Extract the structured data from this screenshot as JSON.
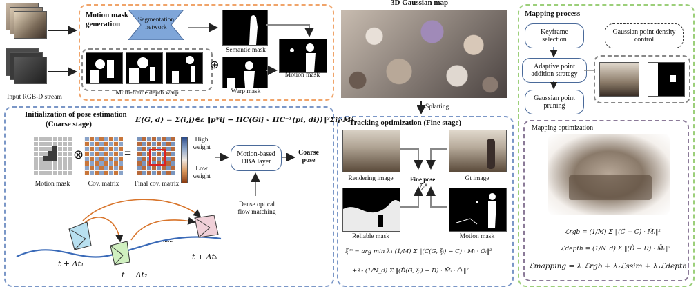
{
  "motion": {
    "title": "Motion mask\ngeneration",
    "segnet": "Segmentation\nnetwork",
    "semantic": "Semantic mask",
    "warp": "Warp mask",
    "motion_mask": "Motion mask",
    "multi_frame": "Multi-frame depth warp",
    "input": "Input RGB-D stream",
    "plus": "⊕"
  },
  "gaussian": {
    "title": "3D Gaussian map",
    "splatting": "Splatting"
  },
  "pose": {
    "title": "Initialization of pose estimation",
    "subtitle": "(Coarse stage)",
    "formula": "E(G, d) = Σ(i,j)∈ε ‖p*ij − ΠC(Gij ∘ ΠC⁻¹(pi, di))‖²Σij·Mj",
    "motion_mask": "Motion mask",
    "cov": "Cov. matrix",
    "final_cov": "Final cov. matrix",
    "otimes": "⊗",
    "equals": "=",
    "high": "High\nweight",
    "low": "Low\nweight",
    "dba": "Motion-based\nDBA layer",
    "coarse": "Coarse\npose",
    "dense": "Dense optical\nflow matching",
    "t1": "t + Δt₁",
    "t2": "t + Δt₂",
    "tk": "t + Δtₖ",
    "dots": "......"
  },
  "tracking": {
    "title": "Tracking optimization (Fine stage)",
    "rendering": "Rendering image",
    "gt": "Gt image",
    "fine": "Fine pose",
    "xi": "ξᵢ*",
    "reliable": "Reliable mask",
    "motion": "Motion mask",
    "eq1": "ξᵢ* = arg min λ₁ (1/M) Σ ‖(Ĉ(G, ξᵢ) − C) · M̄ᵢ · Ōᵢ‖²",
    "eq2": "+λ₂ (1/N_d) Σ ‖(D̂(G, ξᵢ) − D) · M̄ᵢ · Ōᵢ‖²"
  },
  "mapping": {
    "title": "Mapping process",
    "keyframe": "Keyframe\nselection",
    "density": "Gaussian point density\ncontrol",
    "adaptive": "Adaptive point\naddition strategy",
    "pruning": "Gaussian point\npruning",
    "opt_title": "Mapping optimization",
    "l_rgb": "ℒrgb = (1/M) Σ ‖(Ĉ − C) · M̄ᵢ‖²",
    "l_depth": "ℒdepth = (1/N_d) Σ ‖(D̂ − D) · M̄ᵢ‖²",
    "l_map": "ℒmapping = λ₁ℒrgb + λ₂ℒssim + λ₃ℒdepth"
  },
  "colors": {
    "orange": "#f0a46a",
    "blue": "#7b97c7",
    "green": "#9ccf7a",
    "segnet": "#7fa6d9"
  }
}
